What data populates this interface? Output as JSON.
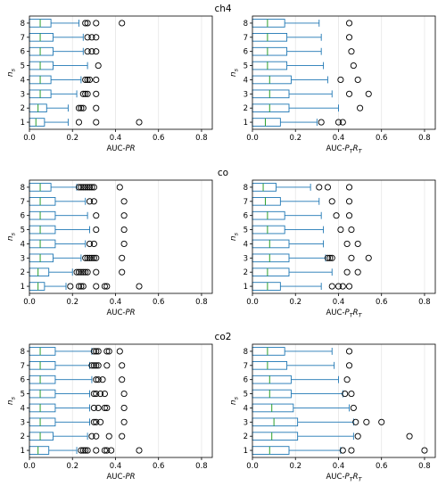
{
  "chart_data": {
    "type": "boxplot",
    "orientation": "horizontal",
    "categories": [
      "1",
      "2",
      "3",
      "4",
      "5",
      "6",
      "7",
      "8"
    ],
    "ylabel": "n_s",
    "xlim": [
      0,
      0.85
    ],
    "xticks": [
      "0.0",
      "0.2",
      "0.4",
      "0.6",
      "0.8"
    ],
    "grid": "x",
    "colors": {
      "box": "#1f77b4",
      "median": "#2ca02c",
      "whisker": "#1f77b4",
      "flier": "#000000"
    },
    "groups": [
      {
        "title": "ch4",
        "panels": [
          {
            "xlabel": "AUC-PR",
            "boxes": [
              {
                "n_s": 1,
                "q1": 0.0,
                "median": 0.03,
                "q3": 0.07,
                "whislo": 0.0,
                "whishi": 0.18,
                "fliers": [
                  0.23,
                  0.31,
                  0.51
                ]
              },
              {
                "n_s": 2,
                "q1": 0.0,
                "median": 0.04,
                "q3": 0.08,
                "whislo": 0.0,
                "whishi": 0.18,
                "fliers": [
                  0.23,
                  0.24,
                  0.25,
                  0.31
                ]
              },
              {
                "n_s": 3,
                "q1": 0.0,
                "median": 0.05,
                "q3": 0.1,
                "whislo": 0.0,
                "whishi": 0.22,
                "fliers": [
                  0.25,
                  0.26,
                  0.27,
                  0.31
                ]
              },
              {
                "n_s": 4,
                "q1": 0.0,
                "median": 0.05,
                "q3": 0.1,
                "whislo": 0.0,
                "whishi": 0.24,
                "fliers": [
                  0.26,
                  0.27,
                  0.28,
                  0.31
                ]
              },
              {
                "n_s": 5,
                "q1": 0.0,
                "median": 0.05,
                "q3": 0.11,
                "whislo": 0.0,
                "whishi": 0.27,
                "fliers": [
                  0.32
                ]
              },
              {
                "n_s": 6,
                "q1": 0.0,
                "median": 0.05,
                "q3": 0.11,
                "whislo": 0.0,
                "whishi": 0.25,
                "fliers": [
                  0.27,
                  0.29,
                  0.31
                ]
              },
              {
                "n_s": 7,
                "q1": 0.0,
                "median": 0.05,
                "q3": 0.11,
                "whislo": 0.0,
                "whishi": 0.25,
                "fliers": [
                  0.27,
                  0.29,
                  0.31
                ]
              },
              {
                "n_s": 8,
                "q1": 0.0,
                "median": 0.05,
                "q3": 0.1,
                "whislo": 0.0,
                "whishi": 0.23,
                "fliers": [
                  0.26,
                  0.27,
                  0.31,
                  0.43
                ]
              }
            ]
          },
          {
            "xlabel": "AUC-PTRT",
            "boxes": [
              {
                "n_s": 1,
                "q1": 0.0,
                "median": 0.06,
                "q3": 0.13,
                "whislo": 0.0,
                "whishi": 0.3,
                "fliers": [
                  0.32,
                  0.4,
                  0.42
                ]
              },
              {
                "n_s": 2,
                "q1": 0.0,
                "median": 0.08,
                "q3": 0.17,
                "whislo": 0.0,
                "whishi": 0.4,
                "fliers": [
                  0.5
                ]
              },
              {
                "n_s": 3,
                "q1": 0.0,
                "median": 0.08,
                "q3": 0.17,
                "whislo": 0.0,
                "whishi": 0.37,
                "fliers": [
                  0.45,
                  0.54
                ]
              },
              {
                "n_s": 4,
                "q1": 0.0,
                "median": 0.08,
                "q3": 0.18,
                "whislo": 0.0,
                "whishi": 0.35,
                "fliers": [
                  0.41,
                  0.49
                ]
              },
              {
                "n_s": 5,
                "q1": 0.0,
                "median": 0.07,
                "q3": 0.16,
                "whislo": 0.0,
                "whishi": 0.33,
                "fliers": [
                  0.47
                ]
              },
              {
                "n_s": 6,
                "q1": 0.0,
                "median": 0.07,
                "q3": 0.16,
                "whislo": 0.0,
                "whishi": 0.32,
                "fliers": [
                  0.46
                ]
              },
              {
                "n_s": 7,
                "q1": 0.0,
                "median": 0.07,
                "q3": 0.16,
                "whislo": 0.0,
                "whishi": 0.32,
                "fliers": [
                  0.45
                ]
              },
              {
                "n_s": 8,
                "q1": 0.0,
                "median": 0.07,
                "q3": 0.15,
                "whislo": 0.0,
                "whishi": 0.31,
                "fliers": [
                  0.45
                ]
              }
            ]
          }
        ]
      },
      {
        "title": "co",
        "panels": [
          {
            "xlabel": "AUC-PR",
            "boxes": [
              {
                "n_s": 1,
                "q1": 0.0,
                "median": 0.04,
                "q3": 0.07,
                "whislo": 0.0,
                "whishi": 0.17,
                "fliers": [
                  0.19,
                  0.23,
                  0.24,
                  0.25,
                  0.31,
                  0.35,
                  0.36,
                  0.51
                ]
              },
              {
                "n_s": 2,
                "q1": 0.0,
                "median": 0.04,
                "q3": 0.09,
                "whislo": 0.0,
                "whishi": 0.2,
                "fliers": [
                  0.22,
                  0.23,
                  0.24,
                  0.25,
                  0.26,
                  0.27,
                  0.31,
                  0.43
                ]
              },
              {
                "n_s": 3,
                "q1": 0.0,
                "median": 0.05,
                "q3": 0.11,
                "whislo": 0.0,
                "whishi": 0.24,
                "fliers": [
                  0.26,
                  0.27,
                  0.28,
                  0.29,
                  0.3,
                  0.31,
                  0.43
                ]
              },
              {
                "n_s": 4,
                "q1": 0.0,
                "median": 0.05,
                "q3": 0.12,
                "whislo": 0.0,
                "whishi": 0.26,
                "fliers": [
                  0.28,
                  0.3,
                  0.44
                ]
              },
              {
                "n_s": 5,
                "q1": 0.0,
                "median": 0.05,
                "q3": 0.12,
                "whislo": 0.0,
                "whishi": 0.28,
                "fliers": [
                  0.31,
                  0.44
                ]
              },
              {
                "n_s": 6,
                "q1": 0.0,
                "median": 0.05,
                "q3": 0.12,
                "whislo": 0.0,
                "whishi": 0.27,
                "fliers": [
                  0.31,
                  0.44
                ]
              },
              {
                "n_s": 7,
                "q1": 0.0,
                "median": 0.05,
                "q3": 0.12,
                "whislo": 0.0,
                "whishi": 0.26,
                "fliers": [
                  0.28,
                  0.3,
                  0.44
                ]
              },
              {
                "n_s": 8,
                "q1": 0.0,
                "median": 0.05,
                "q3": 0.1,
                "whislo": 0.0,
                "whishi": 0.22,
                "fliers": [
                  0.23,
                  0.24,
                  0.25,
                  0.26,
                  0.27,
                  0.28,
                  0.29,
                  0.3,
                  0.42
                ]
              }
            ]
          },
          {
            "xlabel": "AUC-PTRT",
            "boxes": [
              {
                "n_s": 1,
                "q1": 0.0,
                "median": 0.07,
                "q3": 0.13,
                "whislo": 0.0,
                "whishi": 0.32,
                "fliers": [
                  0.37,
                  0.4,
                  0.42,
                  0.45
                ]
              },
              {
                "n_s": 2,
                "q1": 0.0,
                "median": 0.07,
                "q3": 0.17,
                "whislo": 0.0,
                "whishi": 0.37,
                "fliers": [
                  0.44,
                  0.49
                ]
              },
              {
                "n_s": 3,
                "q1": 0.0,
                "median": 0.08,
                "q3": 0.17,
                "whislo": 0.0,
                "whishi": 0.34,
                "fliers": [
                  0.35,
                  0.36,
                  0.37,
                  0.46,
                  0.54
                ]
              },
              {
                "n_s": 4,
                "q1": 0.0,
                "median": 0.08,
                "q3": 0.17,
                "whislo": 0.0,
                "whishi": 0.33,
                "fliers": [
                  0.44,
                  0.49
                ]
              },
              {
                "n_s": 5,
                "q1": 0.0,
                "median": 0.07,
                "q3": 0.15,
                "whislo": 0.0,
                "whishi": 0.33,
                "fliers": [
                  0.41,
                  0.46
                ]
              },
              {
                "n_s": 6,
                "q1": 0.0,
                "median": 0.07,
                "q3": 0.15,
                "whislo": 0.0,
                "whishi": 0.32,
                "fliers": [
                  0.39,
                  0.45
                ]
              },
              {
                "n_s": 7,
                "q1": 0.0,
                "median": 0.06,
                "q3": 0.13,
                "whislo": 0.0,
                "whishi": 0.31,
                "fliers": [
                  0.37,
                  0.45
                ]
              },
              {
                "n_s": 8,
                "q1": 0.0,
                "median": 0.05,
                "q3": 0.11,
                "whislo": 0.0,
                "whishi": 0.27,
                "fliers": [
                  0.31,
                  0.35,
                  0.45
                ]
              }
            ]
          }
        ]
      },
      {
        "title": "co2",
        "panels": [
          {
            "xlabel": "AUC-PR",
            "boxes": [
              {
                "n_s": 1,
                "q1": 0.0,
                "median": 0.04,
                "q3": 0.09,
                "whislo": 0.0,
                "whishi": 0.22,
                "fliers": [
                  0.24,
                  0.25,
                  0.26,
                  0.27,
                  0.31,
                  0.35,
                  0.36,
                  0.38,
                  0.51
                ]
              },
              {
                "n_s": 2,
                "q1": 0.0,
                "median": 0.05,
                "q3": 0.11,
                "whislo": 0.0,
                "whishi": 0.27,
                "fliers": [
                  0.29,
                  0.31,
                  0.37,
                  0.43
                ]
              },
              {
                "n_s": 3,
                "q1": 0.0,
                "median": 0.05,
                "q3": 0.12,
                "whislo": 0.0,
                "whishi": 0.28,
                "fliers": [
                  0.3,
                  0.31,
                  0.33,
                  0.44
                ]
              },
              {
                "n_s": 4,
                "q1": 0.0,
                "median": 0.05,
                "q3": 0.12,
                "whislo": 0.0,
                "whishi": 0.28,
                "fliers": [
                  0.3,
                  0.32,
                  0.35,
                  0.36,
                  0.44
                ]
              },
              {
                "n_s": 5,
                "q1": 0.0,
                "median": 0.05,
                "q3": 0.12,
                "whislo": 0.0,
                "whishi": 0.28,
                "fliers": [
                  0.3,
                  0.31,
                  0.33,
                  0.35,
                  0.44
                ]
              },
              {
                "n_s": 6,
                "q1": 0.0,
                "median": 0.05,
                "q3": 0.12,
                "whislo": 0.0,
                "whishi": 0.29,
                "fliers": [
                  0.31,
                  0.32,
                  0.34,
                  0.43
                ]
              },
              {
                "n_s": 7,
                "q1": 0.0,
                "median": 0.05,
                "q3": 0.12,
                "whislo": 0.0,
                "whishi": 0.28,
                "fliers": [
                  0.29,
                  0.3,
                  0.31,
                  0.32,
                  0.36,
                  0.43
                ]
              },
              {
                "n_s": 8,
                "q1": 0.0,
                "median": 0.05,
                "q3": 0.12,
                "whislo": 0.0,
                "whishi": 0.29,
                "fliers": [
                  0.3,
                  0.31,
                  0.32,
                  0.36,
                  0.37,
                  0.42
                ]
              }
            ]
          },
          {
            "xlabel": "AUC-PTRT",
            "boxes": [
              {
                "n_s": 1,
                "q1": 0.0,
                "median": 0.08,
                "q3": 0.17,
                "whislo": 0.0,
                "whishi": 0.41,
                "fliers": [
                  0.42,
                  0.46,
                  0.8
                ]
              },
              {
                "n_s": 2,
                "q1": 0.0,
                "median": 0.09,
                "q3": 0.21,
                "whislo": 0.0,
                "whishi": 0.47,
                "fliers": [
                  0.49,
                  0.73
                ]
              },
              {
                "n_s": 3,
                "q1": 0.0,
                "median": 0.1,
                "q3": 0.21,
                "whislo": 0.0,
                "whishi": 0.47,
                "fliers": [
                  0.48,
                  0.53,
                  0.6
                ]
              },
              {
                "n_s": 4,
                "q1": 0.0,
                "median": 0.09,
                "q3": 0.19,
                "whislo": 0.0,
                "whishi": 0.45,
                "fliers": [
                  0.47
                ]
              },
              {
                "n_s": 5,
                "q1": 0.0,
                "median": 0.08,
                "q3": 0.18,
                "whislo": 0.0,
                "whishi": 0.42,
                "fliers": [
                  0.43,
                  0.46
                ]
              },
              {
                "n_s": 6,
                "q1": 0.0,
                "median": 0.08,
                "q3": 0.18,
                "whislo": 0.0,
                "whishi": 0.4,
                "fliers": [
                  0.44
                ]
              },
              {
                "n_s": 7,
                "q1": 0.0,
                "median": 0.07,
                "q3": 0.16,
                "whislo": 0.0,
                "whishi": 0.38,
                "fliers": [
                  0.45
                ]
              },
              {
                "n_s": 8,
                "q1": 0.0,
                "median": 0.07,
                "q3": 0.15,
                "whislo": 0.0,
                "whishi": 0.37,
                "fliers": [
                  0.45
                ]
              }
            ]
          }
        ]
      }
    ]
  }
}
